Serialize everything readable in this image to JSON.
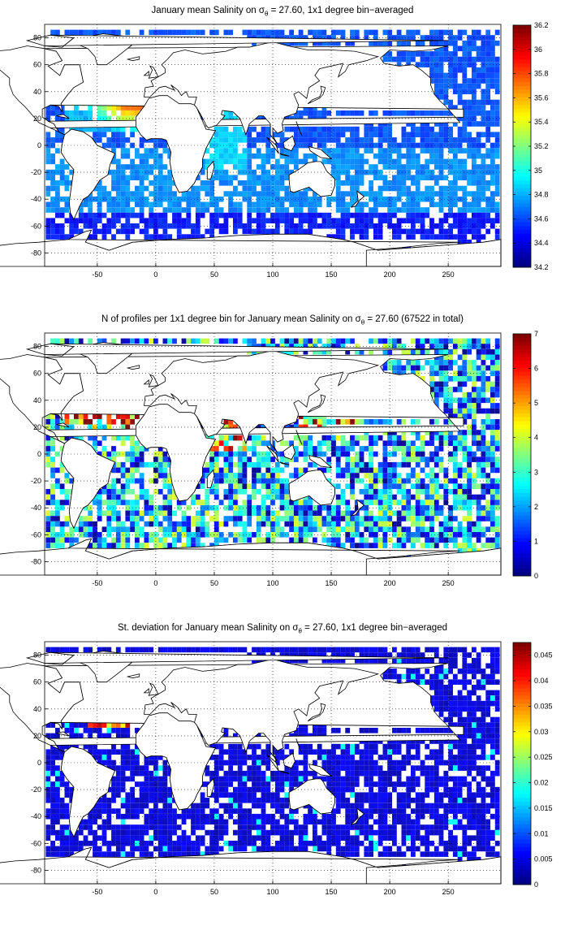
{
  "figure": {
    "panels": [
      {
        "id": "salinity",
        "title_pre": "January mean Salinity on σ",
        "title_sub": "θ",
        "title_post": " = 27.60, 1x1 degree bin−averaged",
        "colorbar": {
          "min": 34.2,
          "max": 36.2,
          "ticks": [
            "36.2",
            "36",
            "35.8",
            "35.6",
            "35.4",
            "35.2",
            "35",
            "34.8",
            "34.6",
            "34.4",
            "34.2"
          ]
        },
        "map_label": "January mean salinity field (mostly 34.4–34.8; up to 36 in the eastern North Atlantic)"
      },
      {
        "id": "count",
        "title_pre": "N of profiles per 1x1 degree bin for January mean Salinity on σ",
        "title_sub": "θ",
        "title_post": " = 27.60 (67522 in total)",
        "colorbar": {
          "min": 0,
          "max": 7,
          "ticks": [
            "7",
            "6",
            "5",
            "4",
            "3",
            "2",
            "1",
            "0"
          ]
        },
        "map_label": "Profile count per bin"
      },
      {
        "id": "stdev",
        "title_pre": "St. deviation for January mean Salinity on σ",
        "title_sub": "θ",
        "title_post": " = 27.60, 1x1 degree bin−averaged",
        "colorbar": {
          "min": 0,
          "max": 0.0475,
          "ticks": [
            "0.045",
            "0.04",
            "0.035",
            "0.03",
            "0.025",
            "0.02",
            "0.015",
            "0.01",
            "0.005",
            "0"
          ]
        },
        "map_label": "Standard deviation per bin"
      }
    ],
    "axes": {
      "xticks": [
        "-50",
        "0",
        "50",
        "100",
        "150",
        "200",
        "250"
      ],
      "yticks": [
        "80",
        "60",
        "40",
        "20",
        "0",
        "-20",
        "-40",
        "-60",
        "-80"
      ],
      "xrange": [
        -95,
        295
      ],
      "yrange": [
        -90,
        90
      ]
    },
    "colormap": "jet"
  }
}
